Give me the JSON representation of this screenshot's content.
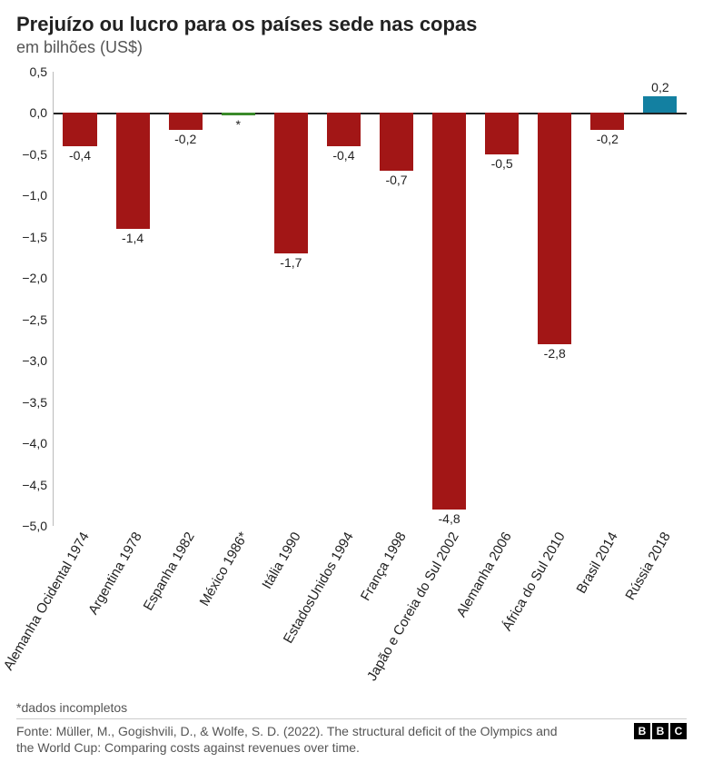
{
  "title": "Prejuízo ou lucro para os países sede nas copas",
  "subtitle": "em bilhões (US$)",
  "footnote": "*dados incompletos",
  "source": "Fonte: Müller, M., Gogishvili, D., & Wolfe, S. D. (2022). The structural deficit of the Olympics and the World Cup: Comparing costs against revenues over time.",
  "logo": {
    "b1": "B",
    "b2": "B",
    "b3": "C"
  },
  "chart": {
    "type": "bar",
    "ymin": -5.0,
    "ymax": 0.5,
    "ytick_step": 0.5,
    "yticks": [
      0.5,
      0.0,
      -0.5,
      -1.0,
      -1.5,
      -2.0,
      -2.5,
      -3.0,
      -3.5,
      -4.0,
      -4.5,
      -5.0
    ],
    "ytick_labels": [
      "0,5",
      "0,0",
      "−0,5",
      "−1,0",
      "−1,5",
      "−2,0",
      "−2,5",
      "−3,0",
      "−3,5",
      "−4,0",
      "−4,5",
      "−5,0"
    ],
    "background_color": "#ffffff",
    "axis_color": "#bbbbbb",
    "baseline_color": "#222222",
    "label_fontsize": 14,
    "categories": [
      "Alemanha Ocidental 1974",
      "Argentina 1978",
      "Espanha 1982",
      "México 1986*",
      "Itália 1990",
      "EstadosUnidos 1994",
      "França 1998",
      "Japão e Coreia do Sul 2002",
      "Alemanha 2006",
      "África do Sul 2010",
      "Brasil 2014",
      "Rússia 2018"
    ],
    "values": [
      -0.4,
      -1.4,
      -0.2,
      -0.03,
      -1.7,
      -0.4,
      -0.7,
      -4.8,
      -0.5,
      -2.8,
      -0.2,
      0.2
    ],
    "value_labels": [
      "-0,4",
      "-1,4",
      "-0,2",
      "*",
      "-1,7",
      "-0,4",
      "-0,7",
      "-4,8",
      "-0,5",
      "-2,8",
      "-0,2",
      "0,2"
    ],
    "bar_colors": [
      "#a21616",
      "#a21616",
      "#a21616",
      "#3a8a2a",
      "#a21616",
      "#a21616",
      "#a21616",
      "#a21616",
      "#a21616",
      "#a21616",
      "#a21616",
      "#1380a1"
    ]
  }
}
